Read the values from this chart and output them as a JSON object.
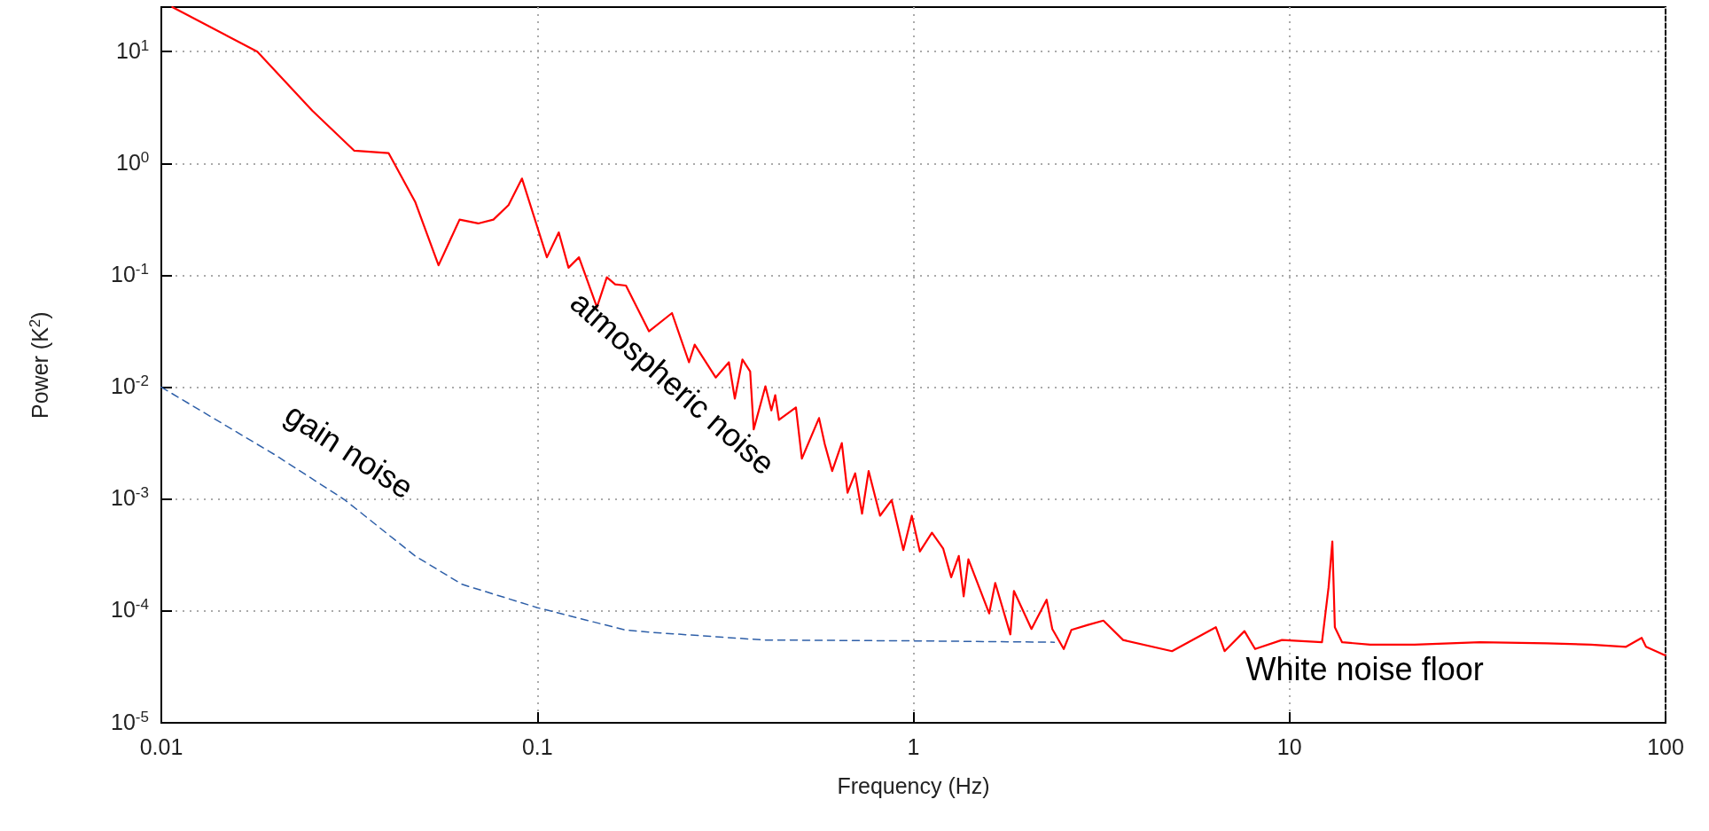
{
  "chart_data": {
    "type": "line",
    "xlabel": "Frequency (Hz)",
    "ylabel": "Power (K$^{2}$)",
    "log": "xy",
    "grid": true,
    "marker": "none",
    "xlim": [
      0.01,
      100
    ],
    "xticks": [
      0.01,
      0.1,
      1,
      10,
      100
    ],
    "ylim": [
      1e-05,
      25
    ],
    "yticks": [
      {
        "value": 1e-05,
        "label": "10$^{-5}$"
      },
      {
        "value": 0.0001,
        "label": "10$^{-4}$"
      },
      {
        "value": 0.001,
        "label": "10$^{-3}$"
      },
      {
        "value": 0.01,
        "label": "10$^{-2}$"
      },
      {
        "value": 0.1,
        "label": "10$^{-1}$"
      },
      {
        "value": 1,
        "label": "10$^{0}$"
      },
      {
        "value": 10,
        "label": "10$^{1}$"
      }
    ],
    "series": [
      {
        "color": "#ff0000",
        "line_style": "solid",
        "x": [
          0.0107,
          0.018,
          0.0252,
          0.0326,
          0.0402,
          0.0473,
          0.0546,
          0.0621,
          0.0696,
          0.0764,
          0.0838,
          0.091,
          0.106,
          0.114,
          0.121,
          0.129,
          0.144,
          0.153,
          0.161,
          0.172,
          0.198,
          0.228,
          0.253,
          0.262,
          0.298,
          0.323,
          0.335,
          0.351,
          0.368,
          0.376,
          0.404,
          0.419,
          0.429,
          0.439,
          0.487,
          0.505,
          0.561,
          0.581,
          0.608,
          0.645,
          0.668,
          0.7,
          0.73,
          0.76,
          0.815,
          0.875,
          0.94,
          0.99,
          1.04,
          1.12,
          1.2,
          1.26,
          1.32,
          1.36,
          1.4,
          1.59,
          1.65,
          1.81,
          1.85,
          2.06,
          2.26,
          2.34,
          2.51,
          2.63,
          2.91,
          3.2,
          3.61,
          4.87,
          6.37,
          6.72,
          7.59,
          8.1,
          9.55,
          12.2,
          12.7,
          13.0,
          13.2,
          13.8,
          16.4,
          21.5,
          32.1,
          48.3,
          63.3,
          78.5,
          86.4,
          88.7,
          99.8
        ],
        "values": [
          25,
          10,
          2.97,
          1.3,
          1.24,
          0.455,
          0.123,
          0.315,
          0.291,
          0.315,
          0.425,
          0.733,
          0.145,
          0.242,
          0.117,
          0.145,
          0.052,
          0.096,
          0.083,
          0.081,
          0.0316,
          0.046,
          0.0167,
          0.024,
          0.0122,
          0.0167,
          0.0079,
          0.0177,
          0.0138,
          0.0042,
          0.0102,
          0.0062,
          0.0085,
          0.0051,
          0.0066,
          0.0023,
          0.0053,
          0.0031,
          0.00178,
          0.00317,
          0.00114,
          0.0017,
          0.00074,
          0.00178,
          0.00071,
          0.00098,
          0.00035,
          0.00071,
          0.00034,
          0.0005,
          0.00036,
          0.0002,
          0.00031,
          0.000135,
          0.00029,
          9.5e-05,
          0.000178,
          6.17e-05,
          0.000151,
          6.9e-05,
          0.000126,
          6.9e-05,
          4.57e-05,
          6.76e-05,
          7.5e-05,
          8.2e-05,
          5.5e-05,
          4.37e-05,
          7.16e-05,
          4.37e-05,
          6.6e-05,
          4.57e-05,
          5.5e-05,
          5.25e-05,
          0.000162,
          0.000417,
          7.16e-05,
          5.25e-05,
          5e-05,
          5e-05,
          5.25e-05,
          5.13e-05,
          5e-05,
          4.78e-05,
          5.75e-05,
          4.78e-05,
          4e-05
        ]
      },
      {
        "color": "#2e5fa8",
        "line_style": "dashed",
        "x": [
          0.01,
          0.02,
          0.0308,
          0.0473,
          0.063,
          0.1,
          0.171,
          0.198,
          0.4,
          1,
          2.37
        ],
        "values": [
          0.01,
          0.0025,
          0.00098,
          0.00031,
          0.000173,
          0.000107,
          6.76e-05,
          6.46e-05,
          5.5e-05,
          5.4e-05,
          5.25e-05
        ]
      }
    ],
    "annotations": [
      "gain noise",
      "atmospheric noise",
      "White noise floor"
    ]
  }
}
